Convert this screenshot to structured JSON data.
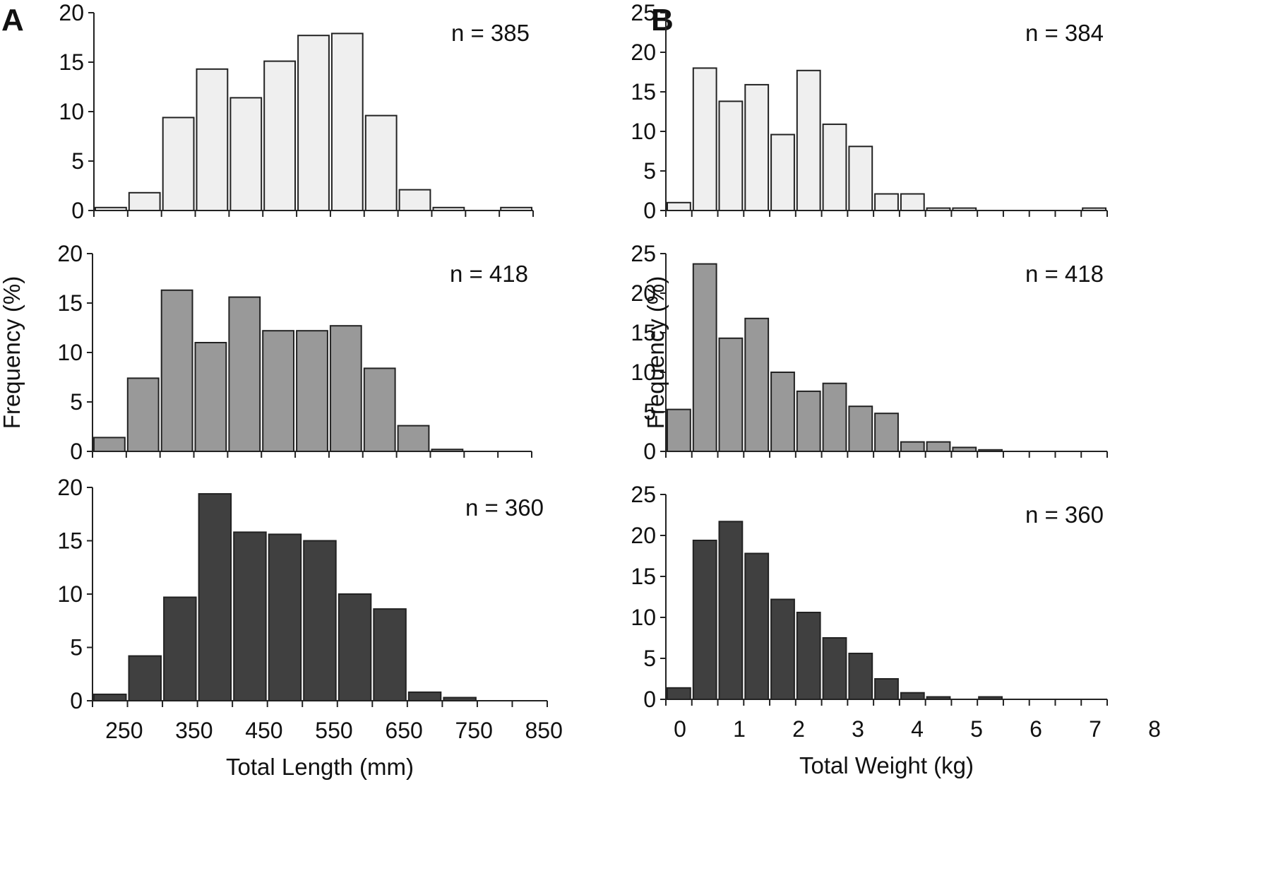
{
  "panel_labels": [
    "A",
    "B"
  ],
  "colors": {
    "light": "#efefef",
    "medium": "#999999",
    "dark": "#404040",
    "outline": "#222222"
  },
  "chart_data": [
    {
      "type": "bar",
      "panel": "A",
      "ylabel": "",
      "xlabel": "",
      "ylim": [
        0,
        20
      ],
      "yticks": [
        0,
        5,
        10,
        15,
        20
      ],
      "n_label": "n = 385",
      "fill": "light",
      "bins": 13,
      "values": [
        0.3,
        1.8,
        9.4,
        14.3,
        11.4,
        15.1,
        17.7,
        17.9,
        9.6,
        2.1,
        0.3,
        0,
        0.3
      ]
    },
    {
      "type": "bar",
      "panel": "A",
      "ylabel": "Frequency (%)",
      "xlabel": "",
      "ylim": [
        0,
        20
      ],
      "yticks": [
        0,
        5,
        10,
        15,
        20
      ],
      "n_label": "n = 418",
      "fill": "medium",
      "bins": 13,
      "values": [
        1.4,
        7.4,
        16.3,
        11.0,
        15.6,
        12.2,
        12.2,
        12.7,
        8.4,
        2.6,
        0.2,
        0,
        0
      ]
    },
    {
      "type": "bar",
      "panel": "A",
      "ylabel": "",
      "xlabel": "Total Length (mm)",
      "ylim": [
        0,
        20
      ],
      "yticks": [
        0,
        5,
        10,
        15,
        20
      ],
      "n_label": "n = 360",
      "fill": "dark",
      "bins": 13,
      "values": [
        0.6,
        4.2,
        9.7,
        19.4,
        15.8,
        15.6,
        15.0,
        10.0,
        8.6,
        0.8,
        0.3,
        0,
        0
      ],
      "xticklabels": [
        "250",
        "350",
        "450",
        "550",
        "650",
        "750",
        "850"
      ]
    },
    {
      "type": "bar",
      "panel": "B",
      "ylabel": "",
      "xlabel": "",
      "ylim": [
        0,
        25
      ],
      "yticks": [
        0,
        5,
        10,
        15,
        20,
        25
      ],
      "n_label": "n = 384",
      "fill": "light",
      "bins": 17,
      "values": [
        1.0,
        18.0,
        13.8,
        15.9,
        9.6,
        17.7,
        10.9,
        8.1,
        2.1,
        2.1,
        0.3,
        0.3,
        0,
        0,
        0,
        0,
        0.3
      ]
    },
    {
      "type": "bar",
      "panel": "B",
      "ylabel": "Frequency (%)",
      "xlabel": "",
      "ylim": [
        0,
        25
      ],
      "yticks": [
        0,
        5,
        10,
        15,
        20,
        25
      ],
      "n_label": "n = 418",
      "fill": "medium",
      "bins": 17,
      "values": [
        5.3,
        23.7,
        14.3,
        16.8,
        10.0,
        7.6,
        8.6,
        5.7,
        4.8,
        1.2,
        1.2,
        0.5,
        0.2,
        0,
        0,
        0,
        0
      ]
    },
    {
      "type": "bar",
      "panel": "B",
      "ylabel": "",
      "xlabel": "Total Weight (kg)",
      "ylim": [
        0,
        25
      ],
      "yticks": [
        0,
        5,
        10,
        15,
        20,
        25
      ],
      "n_label": "n = 360",
      "fill": "dark",
      "bins": 17,
      "values": [
        1.4,
        19.4,
        21.7,
        17.8,
        12.2,
        10.6,
        7.5,
        5.6,
        2.5,
        0.8,
        0.3,
        0,
        0.3,
        0,
        0,
        0,
        0
      ],
      "xticklabels": [
        "0",
        "1",
        "2",
        "3",
        "4",
        "5",
        "6",
        "7",
        "8"
      ]
    }
  ]
}
